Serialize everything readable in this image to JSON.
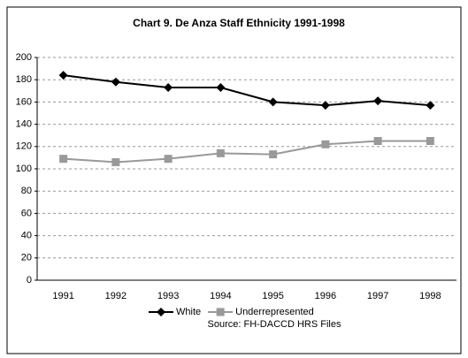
{
  "chart_data": {
    "type": "line",
    "title": "Chart 9. De Anza Staff Ethnicity 1991-1998",
    "categories": [
      "1991",
      "1992",
      "1993",
      "1994",
      "1995",
      "1996",
      "1997",
      "1998"
    ],
    "series": [
      {
        "name": "White",
        "color": "#000000",
        "marker": "diamond",
        "values": [
          184,
          178,
          173,
          173,
          160,
          157,
          161,
          157
        ]
      },
      {
        "name": "Underrepresented",
        "color": "#999999",
        "marker": "square",
        "values": [
          109,
          106,
          109,
          114,
          113,
          122,
          125,
          125
        ]
      }
    ],
    "ylim": [
      0,
      200
    ],
    "yticks": [
      0,
      20,
      40,
      60,
      80,
      100,
      120,
      140,
      160,
      180,
      200
    ],
    "grid": true,
    "legend": "bottom",
    "annotation": "Source:  FH-DACCD HRS Files"
  }
}
